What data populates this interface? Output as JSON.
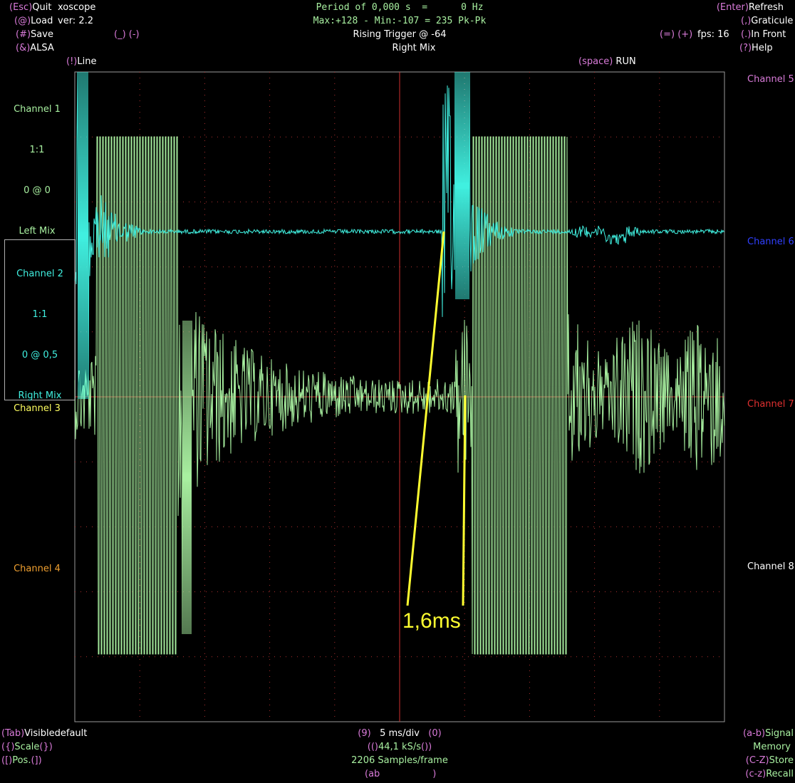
{
  "title_bar": {
    "quit": {
      "key": "(Esc)",
      "label": "Quit"
    },
    "app_name": "xoscope",
    "load": {
      "key": "(@)",
      "label": "Load"
    },
    "version": "ver: 2.2",
    "save": {
      "key": "(#)",
      "label": "Save"
    },
    "alsa": {
      "key": "(&)",
      "label": "ALSA"
    },
    "scale_keys": [
      "(_)",
      "(-)"
    ],
    "line": {
      "key": "(!)",
      "label": "Line"
    },
    "period": "Period of 0,000 s  =      0 Hz",
    "maxmin": "Max:+128 - Min:-107 = 235 Pk-Pk",
    "trigger": "Rising Trigger @ -64",
    "trigger_source": "Right Mix",
    "refresh": {
      "key": "(Enter)",
      "label": "Refresh"
    },
    "graticule": {
      "key": "(,)",
      "label": "Graticule"
    },
    "in_front": {
      "key": "(.)",
      "label": "In Front"
    },
    "help": {
      "key": "(?)",
      "label": "Help"
    },
    "fps_keys": [
      "(=)",
      "(+)"
    ],
    "fps": "fps: 16",
    "run": {
      "key": "(space)",
      "label": "RUN"
    }
  },
  "channels_left": [
    {
      "name": "Channel 1",
      "lines": [
        "1:1",
        "0 @ 0",
        "Left Mix"
      ]
    },
    {
      "name": "Channel 2",
      "lines": [
        "1:1",
        "0 @ 0,5",
        "Right Mix"
      ]
    },
    {
      "name": "Channel 3"
    },
    {
      "name": "Channel 4"
    }
  ],
  "channels_right": [
    "Channel 5",
    "Channel 6",
    "Channel 7",
    "Channel 8"
  ],
  "annotation": "1,6ms",
  "bottom_bar": {
    "visible": {
      "key": "(Tab)",
      "label": "Visible",
      "value": "default"
    },
    "scale": {
      "key": "({)",
      "label": "Scale",
      "key2": "(})"
    },
    "pos": {
      "key": "([)",
      "label": "Pos.",
      "key2": "(])"
    },
    "timebase": {
      "key": "(9)",
      "label": "5 ms/div",
      "key2": "(0)"
    },
    "rate": {
      "key": "(()",
      "label": "44,1 kS/s",
      "key2": "())"
    },
    "samples": "2206 Samples/frame",
    "math": {
      "key": "(ab",
      "key2": ")"
    },
    "signal": {
      "key": "(a-b)",
      "label": "Signal"
    },
    "memory": "Memory",
    "store": {
      "key": "(C-Z)",
      "label": "Store"
    },
    "recall": {
      "key": "(c-z)",
      "label": "Recall"
    }
  }
}
